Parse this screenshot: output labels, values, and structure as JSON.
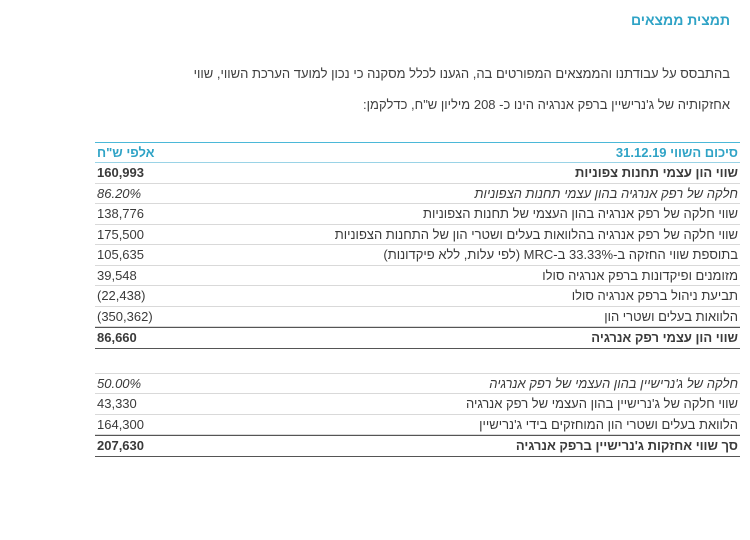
{
  "title": "תמצית ממצאים",
  "paragraph": {
    "line1": "בהתבסס על עבודתנו והממצאים המפורטים בה, הגענו לכלל מסקנה כי נכון למועד הערכת השווי, שווי",
    "line2": "אחזקותיה של ג'נרישיין ברפק אנרגיה הינו כ- 208 מיליון ש\"ח, כדלקמן:"
  },
  "table": {
    "header_label": "סיכום השווי 31.12.19",
    "header_unit": "אלפי ש\"ח",
    "section1": [
      {
        "label": "שווי הון עצמי תחנות צפוניות",
        "value": "160,993",
        "style": "bold"
      },
      {
        "label": "חלקה של רפק אנרגיה בהון עצמי תחנות הצפוניות",
        "value": "86.20%",
        "style": "italic"
      },
      {
        "label": "שווי חלקה של רפק אנרגיה בהון העצמי של תחנות הצפוניות",
        "value": "138,776",
        "style": ""
      },
      {
        "label": "שווי חלקה של רפק אנרגיה בהלוואות בעלים ושטרי הון של התחנות הצפוניות",
        "value": "175,500",
        "style": ""
      },
      {
        "label": "בתוספת שווי החזקה ב-33.33% ב-MRC (לפי עלות, ללא פיקדונות)",
        "value": "105,635",
        "style": ""
      },
      {
        "label": "מזומנים ופיקדונות ברפק אנרגיה סולו",
        "value": "39,548",
        "style": ""
      },
      {
        "label": "תביעת ניהול ברפק אנרגיה סולו",
        "value": "(22,438)",
        "style": ""
      },
      {
        "label": "הלוואות בעלים ושטרי הון",
        "value": "(350,362)",
        "style": ""
      },
      {
        "label": "שווי הון עצמי רפק אנרגיה",
        "value": "86,660",
        "style": "bold total"
      }
    ],
    "section2": [
      {
        "label": "חלקה של ג'נרישיין בהון העצמי של רפק אנרגיה",
        "value": "50.00%",
        "style": "italic"
      },
      {
        "label": "שווי חלקה של ג'נרישיין בהון העצמי של רפק אנרגיה",
        "value": "43,330",
        "style": ""
      },
      {
        "label": "הלוואת בעלים ושטרי הון המוחזקים בידי ג'נרישיין",
        "value": "164,300",
        "style": ""
      },
      {
        "label": "סך שווי אחזקות ג'נרישיין ברפק אנרגיה",
        "value": "207,630",
        "style": "bold total"
      }
    ]
  }
}
